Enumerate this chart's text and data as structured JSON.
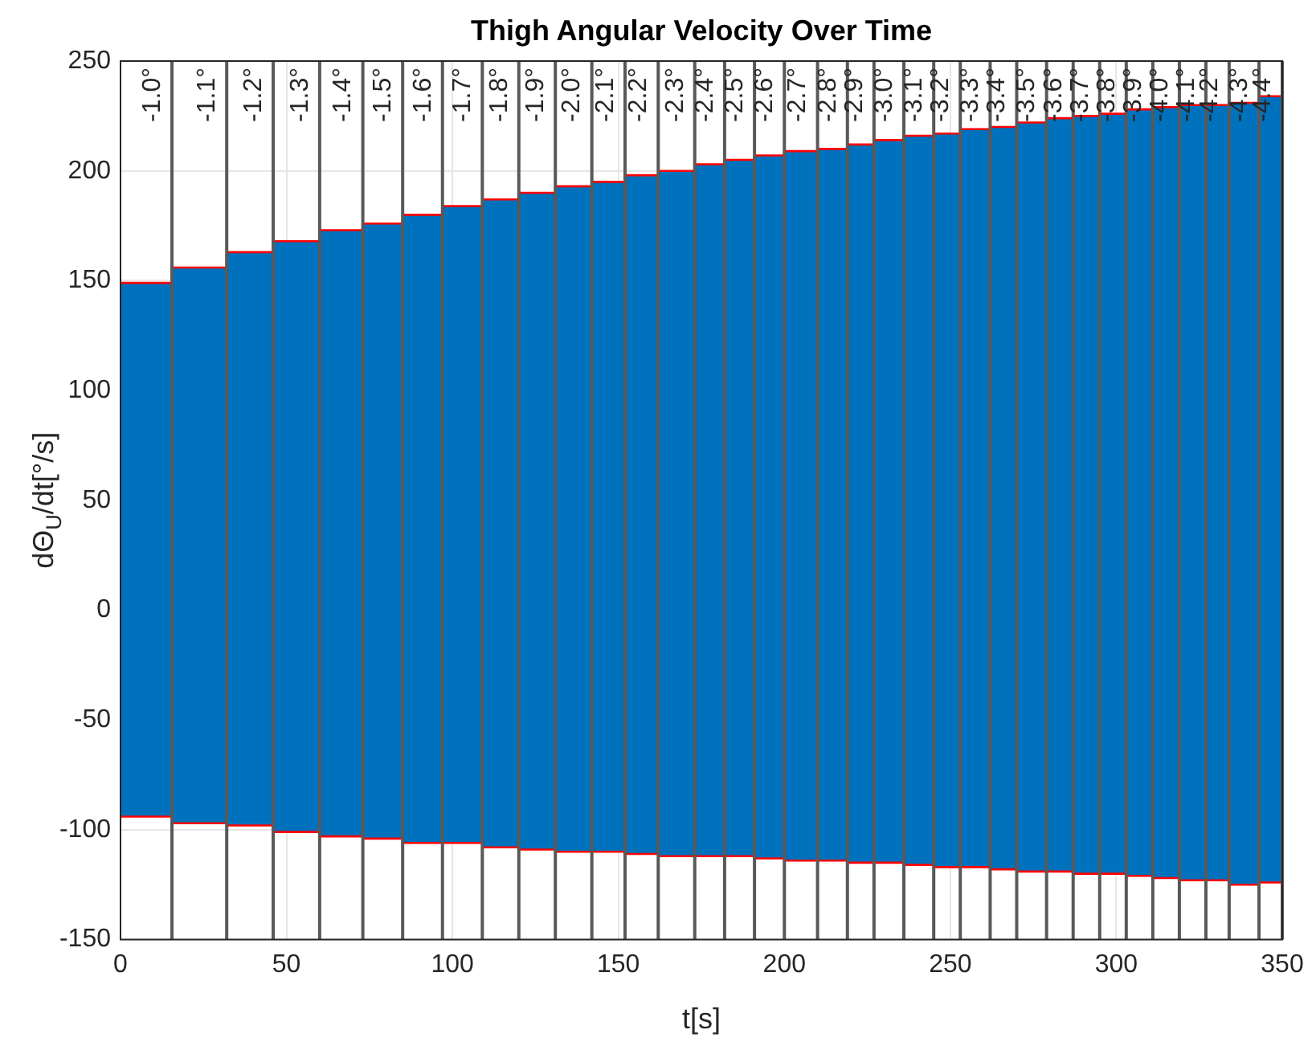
{
  "chart_data": {
    "type": "step",
    "title": "Thigh Angular Velocity Over Time",
    "xlabel": "t[s]",
    "ylabel": "dΘ$_{U}$/dt[°/s]",
    "xlim": [
      0,
      350
    ],
    "xticks": [
      0,
      50,
      100,
      150,
      200,
      250,
      300,
      350
    ],
    "ylim": [
      -150,
      250
    ],
    "yticks": [
      -150,
      -100,
      -50,
      0,
      50,
      100,
      150,
      200,
      250
    ],
    "grid": true,
    "legend": false,
    "series": [
      {
        "color": "#0072bd",
        "x": [
          0,
          15.5,
          32,
          46,
          60,
          73,
          85,
          97,
          109,
          120,
          131,
          142,
          152,
          162,
          173,
          182,
          191,
          200,
          210,
          219,
          227,
          236,
          245,
          253,
          262,
          270,
          279,
          287,
          295,
          303,
          311,
          319,
          327,
          334,
          343,
          350
        ],
        "values": [
          null,
          null,
          null,
          null,
          null,
          null,
          null,
          null,
          null,
          null,
          null,
          null,
          null,
          null,
          null,
          null,
          null,
          null,
          null,
          null,
          null,
          null,
          null,
          null,
          null,
          null,
          null,
          null,
          null,
          null,
          null,
          null,
          null,
          null,
          null,
          null
        ],
        "lower": [
          -94,
          -97,
          -98,
          -101,
          -103,
          -104,
          -106,
          -106,
          -108,
          -109,
          -110,
          -110,
          -111,
          -112,
          -112,
          -112,
          -113,
          -114,
          -114,
          -115,
          -115,
          -116,
          -117,
          -117,
          -118,
          -119,
          -119,
          -120,
          -120,
          -121,
          -122,
          -123,
          -123,
          -125,
          -124,
          -124
        ],
        "upper": [
          149,
          156,
          163,
          168,
          173,
          176,
          180,
          184,
          187,
          190,
          193,
          195,
          198,
          200,
          203,
          205,
          207,
          209,
          210,
          212,
          214,
          216,
          217,
          219,
          220,
          222,
          224,
          225,
          226,
          228,
          229,
          230,
          230,
          231,
          234,
          234
        ]
      },
      {
        "color": "#ff0000",
        "x": [
          0,
          15.5,
          32,
          46,
          60,
          73,
          85,
          97,
          109,
          120,
          131,
          142,
          152,
          162,
          173,
          182,
          191,
          200,
          210,
          219,
          227,
          236,
          245,
          253,
          262,
          270,
          279,
          287,
          295,
          303,
          311,
          319,
          327,
          334,
          343,
          350
        ],
        "values": [
          149,
          156,
          163,
          168,
          173,
          176,
          180,
          184,
          187,
          190,
          193,
          195,
          198,
          200,
          203,
          205,
          207,
          209,
          210,
          212,
          214,
          216,
          217,
          219,
          220,
          222,
          224,
          225,
          226,
          228,
          229,
          230,
          230,
          231,
          234,
          234
        ]
      },
      {
        "color": "#ff0000",
        "x": [
          0,
          15.5,
          32,
          46,
          60,
          73,
          85,
          97,
          109,
          120,
          131,
          142,
          152,
          162,
          173,
          182,
          191,
          200,
          210,
          219,
          227,
          236,
          245,
          253,
          262,
          270,
          279,
          287,
          295,
          303,
          311,
          319,
          327,
          334,
          343,
          350
        ],
        "values": [
          -94,
          -97,
          -98,
          -101,
          -103,
          -104,
          -106,
          -106,
          -108,
          -109,
          -110,
          -110,
          -111,
          -112,
          -112,
          -112,
          -113,
          -114,
          -114,
          -115,
          -115,
          -116,
          -117,
          -117,
          -118,
          -119,
          -119,
          -120,
          -120,
          -121,
          -122,
          -123,
          -123,
          -125,
          -124,
          -124
        ]
      }
    ],
    "ref_lines": [
      {
        "axis": "x",
        "value": 15.5,
        "color": "#595959"
      },
      {
        "axis": "x",
        "value": 32,
        "color": "#595959"
      },
      {
        "axis": "x",
        "value": 46,
        "color": "#595959"
      },
      {
        "axis": "x",
        "value": 60,
        "color": "#595959"
      },
      {
        "axis": "x",
        "value": 73,
        "color": "#595959"
      },
      {
        "axis": "x",
        "value": 85,
        "color": "#595959"
      },
      {
        "axis": "x",
        "value": 97,
        "color": "#595959"
      },
      {
        "axis": "x",
        "value": 109,
        "color": "#595959"
      },
      {
        "axis": "x",
        "value": 120,
        "color": "#595959"
      },
      {
        "axis": "x",
        "value": 131,
        "color": "#595959"
      },
      {
        "axis": "x",
        "value": 142,
        "color": "#595959"
      },
      {
        "axis": "x",
        "value": 152,
        "color": "#595959"
      },
      {
        "axis": "x",
        "value": 162,
        "color": "#595959"
      },
      {
        "axis": "x",
        "value": 173,
        "color": "#595959"
      },
      {
        "axis": "x",
        "value": 182,
        "color": "#595959"
      },
      {
        "axis": "x",
        "value": 191,
        "color": "#595959"
      },
      {
        "axis": "x",
        "value": 200,
        "color": "#595959"
      },
      {
        "axis": "x",
        "value": 210,
        "color": "#595959"
      },
      {
        "axis": "x",
        "value": 219,
        "color": "#595959"
      },
      {
        "axis": "x",
        "value": 227,
        "color": "#595959"
      },
      {
        "axis": "x",
        "value": 236,
        "color": "#595959"
      },
      {
        "axis": "x",
        "value": 245,
        "color": "#595959"
      },
      {
        "axis": "x",
        "value": 253,
        "color": "#595959"
      },
      {
        "axis": "x",
        "value": 262,
        "color": "#595959"
      },
      {
        "axis": "x",
        "value": 270,
        "color": "#595959"
      },
      {
        "axis": "x",
        "value": 279,
        "color": "#595959"
      },
      {
        "axis": "x",
        "value": 287,
        "color": "#595959"
      },
      {
        "axis": "x",
        "value": 295,
        "color": "#595959"
      },
      {
        "axis": "x",
        "value": 303,
        "color": "#595959"
      },
      {
        "axis": "x",
        "value": 311,
        "color": "#595959"
      },
      {
        "axis": "x",
        "value": 319,
        "color": "#595959"
      },
      {
        "axis": "x",
        "value": 327,
        "color": "#595959"
      },
      {
        "axis": "x",
        "value": 334,
        "color": "#595959"
      },
      {
        "axis": "x",
        "value": 343,
        "color": "#595959"
      },
      {
        "axis": "x",
        "value": 350,
        "color": "#595959"
      }
    ],
    "annotations": [
      {
        "text": "-1.0°",
        "x": 15.5,
        "y": 250
      },
      {
        "text": "-1.1°",
        "x": 32,
        "y": 250
      },
      {
        "text": "-1.2°",
        "x": 46,
        "y": 250
      },
      {
        "text": "-1.3°",
        "x": 60,
        "y": 250
      },
      {
        "text": "-1.4°",
        "x": 73,
        "y": 250
      },
      {
        "text": "-1.5°",
        "x": 85,
        "y": 250
      },
      {
        "text": "-1.6°",
        "x": 97,
        "y": 250
      },
      {
        "text": "-1.7°",
        "x": 109,
        "y": 250
      },
      {
        "text": "-1.8°",
        "x": 120,
        "y": 250
      },
      {
        "text": "-1.9°",
        "x": 131,
        "y": 250
      },
      {
        "text": "-2.0°",
        "x": 142,
        "y": 250
      },
      {
        "text": "-2.1°",
        "x": 152,
        "y": 250
      },
      {
        "text": "-2.2°",
        "x": 162,
        "y": 250
      },
      {
        "text": "-2.3°",
        "x": 173,
        "y": 250
      },
      {
        "text": "-2.4°",
        "x": 182,
        "y": 250
      },
      {
        "text": "-2.5°",
        "x": 191,
        "y": 250
      },
      {
        "text": "-2.6°",
        "x": 200,
        "y": 250
      },
      {
        "text": "-2.7°",
        "x": 210,
        "y": 250
      },
      {
        "text": "-2.8°",
        "x": 219,
        "y": 250
      },
      {
        "text": "-2.9°",
        "x": 227,
        "y": 250
      },
      {
        "text": "-3.0°",
        "x": 236,
        "y": 250
      },
      {
        "text": "-3.1°",
        "x": 245,
        "y": 250
      },
      {
        "text": "-3.2°",
        "x": 253,
        "y": 250
      },
      {
        "text": "-3.3°",
        "x": 262,
        "y": 250
      },
      {
        "text": "-3.4°",
        "x": 270,
        "y": 250
      },
      {
        "text": "-3.5°",
        "x": 279,
        "y": 250
      },
      {
        "text": "-3.6°",
        "x": 287,
        "y": 250
      },
      {
        "text": "-3.7°",
        "x": 295,
        "y": 250
      },
      {
        "text": "-3.8°",
        "x": 303,
        "y": 250
      },
      {
        "text": "-3.9°",
        "x": 311,
        "y": 250
      },
      {
        "text": "-4.0°",
        "x": 319,
        "y": 250
      },
      {
        "text": "-4.1°",
        "x": 327,
        "y": 250
      },
      {
        "text": "-4.2°",
        "x": 334,
        "y": 250
      },
      {
        "text": "-4.3°",
        "x": 343,
        "y": 250
      },
      {
        "text": "-4.4°",
        "x": 350,
        "y": 250
      }
    ]
  }
}
